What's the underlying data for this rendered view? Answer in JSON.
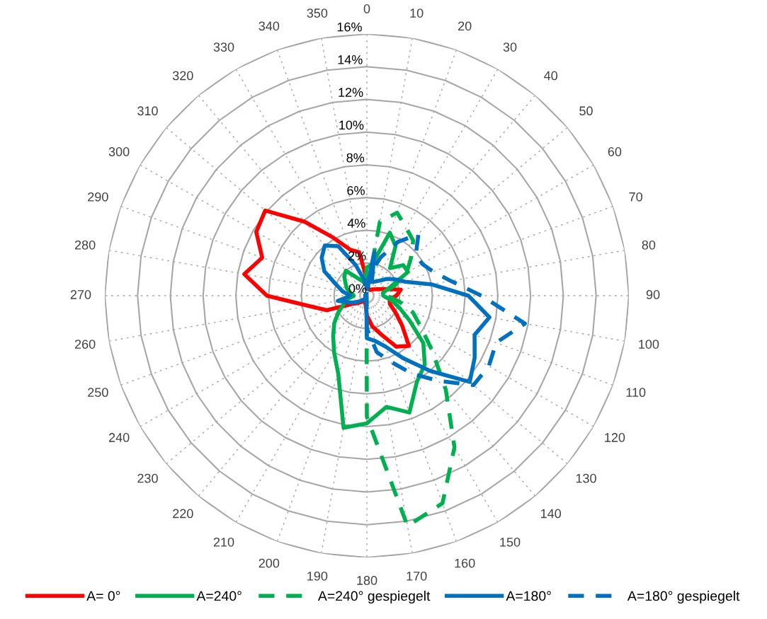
{
  "chart_data": {
    "type": "radar",
    "categories": [
      "0",
      "10",
      "20",
      "30",
      "40",
      "50",
      "60",
      "70",
      "80",
      "90",
      "100",
      "110",
      "120",
      "130",
      "140",
      "150",
      "160",
      "170",
      "180",
      "190",
      "200",
      "210",
      "220",
      "230",
      "240",
      "250",
      "260",
      "270",
      "280",
      "290",
      "300",
      "310",
      "320",
      "330",
      "340",
      "350"
    ],
    "ylim": [
      0,
      16
    ],
    "yticks": [
      {
        "value": 0,
        "label": "0%"
      },
      {
        "value": 2,
        "label": "2%"
      },
      {
        "value": 4,
        "label": "4%"
      },
      {
        "value": 6,
        "label": "6%"
      },
      {
        "value": 8,
        "label": "8%"
      },
      {
        "value": 10,
        "label": "10%"
      },
      {
        "value": 12,
        "label": "12%"
      },
      {
        "value": 14,
        "label": "14%"
      },
      {
        "value": 16,
        "label": "16%"
      }
    ],
    "grid": true,
    "legend": "bottom",
    "marker": "none",
    "series": [
      {
        "name": "A= 0°",
        "color": "#ff0000",
        "line_style": "solid",
        "values": [
          1.0,
          0.5,
          0.4,
          0.4,
          0.5,
          0.6,
          0.8,
          1.2,
          2.1,
          1.8,
          1.4,
          1.5,
          2.0,
          2.8,
          4.0,
          3.6,
          2.5,
          1.9,
          1.2,
          0.5,
          0.4,
          0.4,
          0.5,
          0.7,
          1.0,
          2.6,
          3.6,
          6.1,
          7.6,
          6.8,
          7.8,
          8.1,
          5.9,
          4.1,
          3.0,
          2.7
        ]
      },
      {
        "name": "A=240°",
        "color": "#00b050",
        "line_style": "solid",
        "values": [
          1.7,
          2.0,
          4.1,
          3.5,
          2.2,
          2.9,
          2.9,
          1.5,
          1.0,
          1.0,
          1.5,
          2.1,
          3.0,
          4.5,
          5.5,
          6.1,
          7.6,
          6.9,
          7.8,
          8.2,
          5.1,
          4.0,
          3.2,
          2.6,
          2.0,
          1.5,
          1.2,
          0.8,
          1.0,
          1.3,
          1.5,
          1.8,
          2.0,
          1.3,
          1.0,
          0.8
        ]
      },
      {
        "name": "A=240° gespiegelt",
        "color": "#00b050",
        "line_style": "dashed",
        "values": [
          0.3,
          4.6,
          5.4,
          4.8,
          4.4,
          3.5,
          2.8,
          1.8,
          1.0,
          1.2,
          2.0,
          3.0,
          3.8,
          5.2,
          7.5,
          10.7,
          13.5,
          14.3,
          7.4,
          0.1,
          0.1,
          0.1,
          0.1,
          0.1,
          0.1,
          0.1,
          0.1,
          0.1,
          0.1,
          0.1,
          0.1,
          0.1,
          0.1,
          0.1,
          0.1,
          0.1
        ]
      },
      {
        "name": "A=180°",
        "color": "#0070c0",
        "line_style": "solid",
        "values": [
          0.5,
          2.7,
          0.9,
          1.0,
          1.2,
          1.6,
          2.0,
          2.5,
          4.0,
          6.2,
          7.6,
          7.0,
          7.6,
          8.2,
          6.0,
          4.4,
          3.3,
          2.8,
          2.6,
          0.2,
          0.2,
          0.2,
          0.3,
          0.5,
          0.8,
          1.2,
          1.8,
          1.0,
          1.5,
          2.0,
          3.0,
          3.6,
          4.0,
          3.5,
          2.0,
          1.0
        ]
      },
      {
        "name": "A=180° gespiegelt",
        "color": "#0070c0",
        "line_style": "dashed",
        "values": [
          0.3,
          1.5,
          2.5,
          3.8,
          4.9,
          3.9,
          3.9,
          4.3,
          5.2,
          7.0,
          9.8,
          8.4,
          8.6,
          8.5,
          6.8,
          5.5,
          4.3,
          3.5,
          2.0,
          0.1,
          0.1,
          0.1,
          0.1,
          0.1,
          0.1,
          0.1,
          0.1,
          0.1,
          0.1,
          0.1,
          0.1,
          0.1,
          0.1,
          0.1,
          0.1,
          0.1
        ]
      }
    ]
  }
}
